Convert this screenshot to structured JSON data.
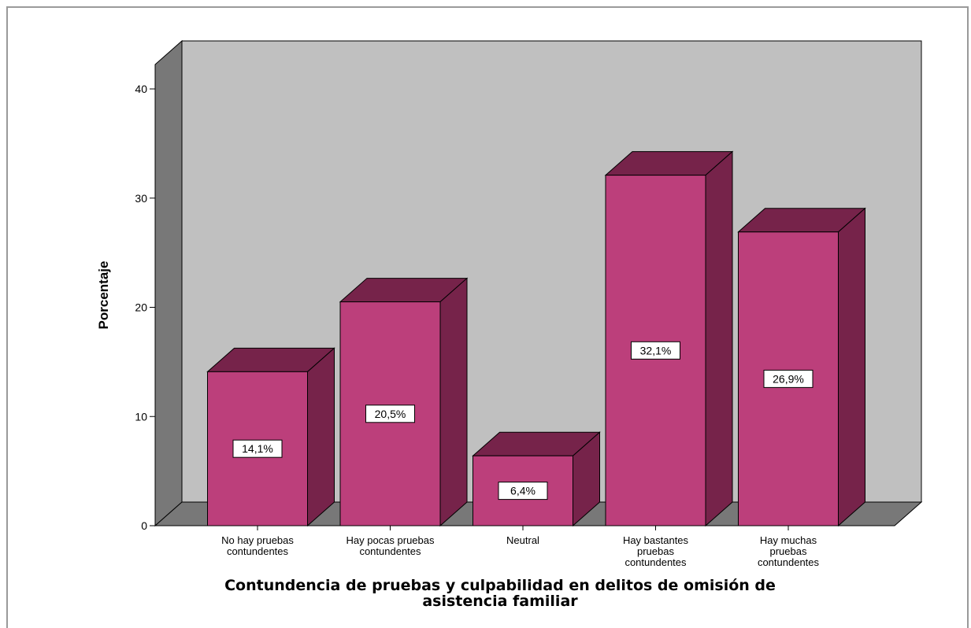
{
  "chart_data": {
    "type": "bar",
    "style": "3d",
    "title": "",
    "xlabel": "Contundencia de pruebas y culpabilidad en delitos de omisión de\nasistencia familiar",
    "ylabel": "Porcentaje",
    "ylim": [
      0,
      40
    ],
    "yticks": [
      "0",
      "10",
      "20",
      "30",
      "40"
    ],
    "categories": [
      "No hay pruebas\ncontundentes",
      "Hay pocas pruebas\ncontundentes",
      "Neutral",
      "Hay bastantes\npruebas\ncontundentes",
      "Hay muchas\npruebas\ncontundentes"
    ],
    "values": [
      14.1,
      20.5,
      6.4,
      32.1,
      26.9
    ],
    "data_labels": [
      "14,1%",
      "20,5%",
      "6,4%",
      "32,1%",
      "26,9%"
    ],
    "grid": false,
    "legend": "none",
    "colors": {
      "bar_front": "#bc3f7b",
      "bar_side": "#76234a",
      "bar_top": "#76234a",
      "back_wall": "#c0c0c0",
      "side_wall": "#787878",
      "floor": "#787878"
    }
  }
}
